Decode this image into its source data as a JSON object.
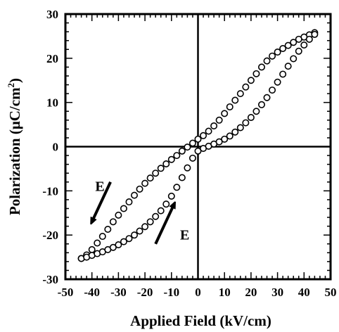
{
  "chart_data": {
    "type": "scatter",
    "xlabel": "Applied Field (kV/cm)",
    "ylabel_parts": {
      "main": "Polarization (μC/cm",
      "sup": "2",
      "end": ")"
    },
    "xlim": [
      -50,
      50
    ],
    "ylim": [
      -30,
      30
    ],
    "x_ticks": [
      -50,
      -40,
      -30,
      -20,
      -10,
      0,
      10,
      20,
      30,
      40,
      50
    ],
    "y_ticks": [
      -30,
      -20,
      -10,
      0,
      10,
      20,
      30
    ],
    "x_tick_labels": [
      "-50",
      "-40",
      "-30",
      "-20",
      "-10",
      "0",
      "10",
      "20",
      "30",
      "40",
      "50"
    ],
    "y_tick_labels": [
      "-30",
      "-20",
      "-10",
      "0",
      "10",
      "20",
      "30"
    ],
    "grid": false,
    "marker": "open-circle",
    "series": [
      {
        "x": [
          44,
          42,
          40,
          38,
          36,
          34,
          32,
          30,
          28,
          26,
          24,
          22,
          20,
          18,
          16,
          14,
          12,
          10,
          8,
          6,
          4,
          2,
          0,
          -2,
          -4,
          -6,
          -8,
          -10,
          -12,
          -14,
          -16,
          -18,
          -20,
          -22,
          -24,
          -26,
          -28,
          -30,
          -32,
          -34,
          -36,
          -38,
          -40,
          -42,
          -44
        ],
        "y": [
          25.8,
          25.3,
          24.8,
          24.3,
          23.6,
          22.9,
          22.2,
          21.4,
          20.5,
          19.4,
          18.0,
          16.5,
          15.0,
          13.5,
          12.0,
          10.5,
          9.0,
          7.5,
          6.0,
          4.7,
          3.5,
          2.5,
          1.7,
          0.8,
          -0.1,
          -1.0,
          -2.0,
          -2.9,
          -3.9,
          -4.9,
          -6.0,
          -7.1,
          -8.3,
          -9.6,
          -11.0,
          -12.5,
          -14.0,
          -15.5,
          -17.0,
          -18.7,
          -20.3,
          -21.8,
          -23.3,
          -24.5,
          -25.3
        ]
      },
      {
        "x": [
          -44,
          -42,
          -40,
          -38,
          -36,
          -34,
          -32,
          -30,
          -28,
          -26,
          -24,
          -22,
          -20,
          -18,
          -16,
          -14,
          -12,
          -10,
          -8,
          -6,
          -4,
          -2,
          0,
          2,
          4,
          6,
          8,
          10,
          12,
          14,
          16,
          18,
          20,
          22,
          24,
          26,
          28,
          30,
          32,
          34,
          36,
          38,
          40,
          42,
          44
        ],
        "y": [
          -25.3,
          -25.0,
          -24.6,
          -24.2,
          -23.8,
          -23.3,
          -22.8,
          -22.2,
          -21.5,
          -20.8,
          -20.0,
          -19.1,
          -18.1,
          -17.0,
          -15.8,
          -14.5,
          -13.0,
          -11.2,
          -9.2,
          -7.0,
          -4.8,
          -2.6,
          -1.0,
          -0.4,
          0.1,
          0.6,
          1.1,
          1.7,
          2.4,
          3.3,
          4.3,
          5.4,
          6.6,
          8.0,
          9.5,
          11.1,
          12.8,
          14.6,
          16.4,
          18.2,
          19.9,
          21.6,
          23.0,
          24.3,
          25.4
        ]
      }
    ],
    "annotations": [
      {
        "text": "E",
        "x": -37,
        "y": -10,
        "arrow_from": [
          -33,
          -8
        ],
        "arrow_to": [
          -40,
          -17
        ]
      },
      {
        "text": "E",
        "x": -5,
        "y": -21,
        "arrow_from": [
          -16,
          -22
        ],
        "arrow_to": [
          -9,
          -13
        ]
      }
    ]
  }
}
